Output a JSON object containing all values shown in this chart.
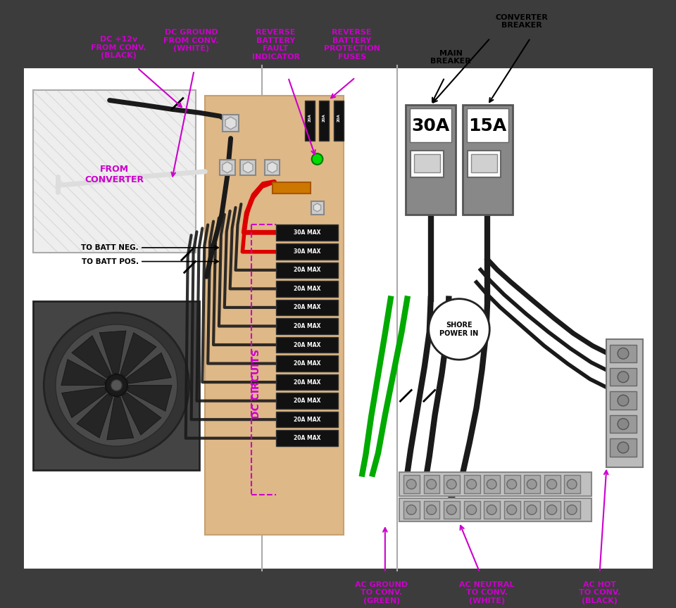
{
  "bg_outer": "#3c3c3c",
  "bg_inner": "#ffffff",
  "bg_board": "#deb887",
  "color_purple": "#cc00cc",
  "color_black_wire": "#1a1a1a",
  "color_red_wire": "#dd0000",
  "color_green_wire": "#00aa00",
  "color_gray": "#888888",
  "color_light_gray": "#cccccc",
  "color_white": "#ffffff",
  "color_black": "#000000",
  "color_orange": "#cc7700",
  "breaker_30a": "30A",
  "breaker_15a": "15A",
  "dc_labels": [
    "30A MAX",
    "30A MAX",
    "20A MAX",
    "20A MAX",
    "20A MAX",
    "20A MAX",
    "20A MAX",
    "20A MAX",
    "20A MAX",
    "20A MAX",
    "20A MAX",
    "20A MAX"
  ],
  "fuse_labels": [
    "20A",
    "20A",
    "20A"
  ],
  "ann_dc12v": "DC +12v\nFROM CONV.\n(BLACK)",
  "ann_dcgnd": "DC GROUND\nFROM CONV.\n(WHITE)",
  "ann_rbfi": "REVERSE\nBATTERY\nFAULT\nINDICATOR",
  "ann_rbpf": "REVERSE\nBATTERY\nPROTECTION\nFUSES",
  "ann_convbrk": "CONVERTER\nBREAKER",
  "ann_mainbrk": "MAIN\nBREAKER",
  "ann_fromconv": "FROM\nCONVERTER",
  "ann_batt_neg": "TO BATT NEG.",
  "ann_batt_pos": "TO BATT POS.",
  "ann_dc_circuits": "DC CIRCUITS",
  "ann_shore": "SHORE\nPOWER IN",
  "ann_acgnd": "AC GROUND\nTO CONV.\n(GREEN)",
  "ann_acneu": "AC NEUTRAL\nTO CONV.\n(WHITE)",
  "ann_achot": "AC HOT\nTO CONV.\n(BLACK)"
}
